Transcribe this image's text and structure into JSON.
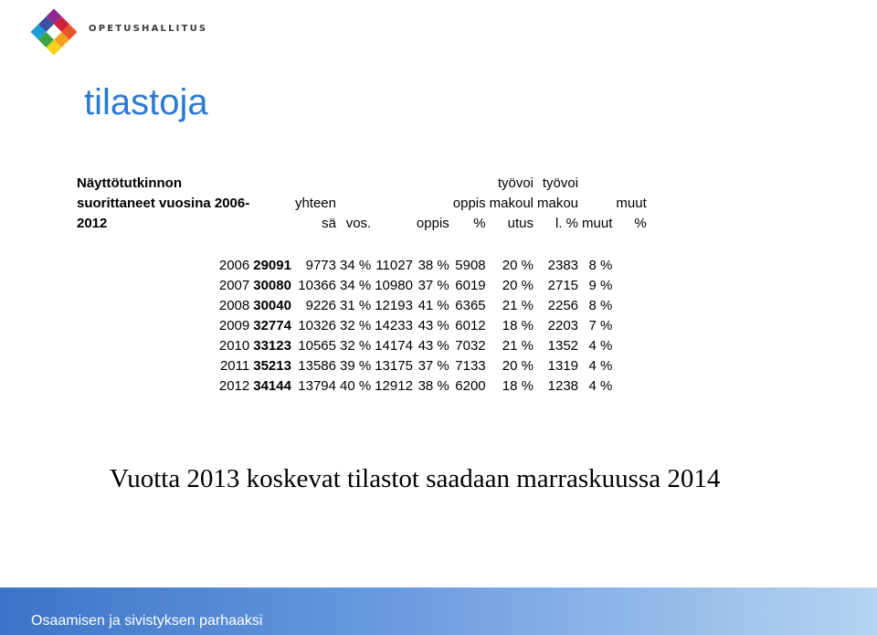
{
  "header": {
    "logo_text": "OPETUSHALLITUS"
  },
  "title": "tilastoja",
  "table": {
    "label_lines": [
      "Näyttötutkinnon",
      "suorittaneet vuosina 2006-",
      "2012"
    ],
    "headers": [
      [
        "",
        "",
        ""
      ],
      [
        "",
        "yhteen",
        "sä"
      ],
      [
        "",
        "",
        "vos."
      ],
      [
        "",
        "",
        ""
      ],
      [
        "",
        "",
        "oppis"
      ],
      [
        "",
        "oppis",
        "%"
      ],
      [
        "työvoi",
        "makoul",
        "utus"
      ],
      [
        "työvoi",
        "makou",
        "l. %"
      ],
      [
        "",
        "",
        "muut"
      ],
      [
        "",
        "muut",
        "%"
      ]
    ],
    "rows": [
      [
        "2006",
        "29091",
        "9773",
        "34 %",
        "11027",
        "38 %",
        "5908",
        "20 %",
        "2383",
        "8 %"
      ],
      [
        "2007",
        "30080",
        "10366",
        "34 %",
        "10980",
        "37 %",
        "6019",
        "20 %",
        "2715",
        "9 %"
      ],
      [
        "2008",
        "30040",
        "9226",
        "31 %",
        "12193",
        "41 %",
        "6365",
        "21 %",
        "2256",
        "8 %"
      ],
      [
        "2009",
        "32774",
        "10326",
        "32 %",
        "14233",
        "43 %",
        "6012",
        "18 %",
        "2203",
        "7 %"
      ],
      [
        "2010",
        "33123",
        "10565",
        "32 %",
        "14174",
        "43 %",
        "7032",
        "21 %",
        "1352",
        "4 %"
      ],
      [
        "2011",
        "35213",
        "13586",
        "39 %",
        "13175",
        "37 %",
        "7133",
        "20 %",
        "1319",
        "4 %"
      ],
      [
        "2012",
        "34144",
        "13794",
        "40 %",
        "12912",
        "38 %",
        "6200",
        "18 %",
        "1238",
        "4 %"
      ]
    ]
  },
  "note": "Vuotta 2013 koskevat tilastot saadaan marraskuussa 2014",
  "footer": {
    "text": "Osaamisen ja sivistyksen parhaaksi"
  },
  "colors": {
    "title": "#2a7bd4",
    "footer_start": "#3d74c7",
    "footer_end": "#b7d3f2"
  }
}
